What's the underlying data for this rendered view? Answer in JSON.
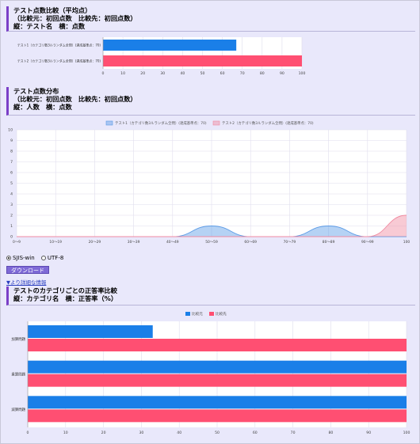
{
  "section1": {
    "title": "テスト点数比較（平均点）",
    "line2": "（比較元：初回点数　比較先：初回点数）",
    "line3": "縦：テスト名　横：点数",
    "chart_data": {
      "type": "bar",
      "orientation": "horizontal",
      "categories": [
        "テスト1（カテゴリ数3ルランダム全問）(達成基準点：70)",
        "テスト2（カテゴリ数3ルランダム全問）(達成基準点：70)"
      ],
      "values": [
        67,
        100
      ],
      "bar_colors": [
        "#1a7fe8",
        "#ff4f72"
      ],
      "xlim": [
        0,
        100
      ],
      "xticks": [
        0,
        10,
        20,
        30,
        40,
        50,
        60,
        70,
        80,
        90,
        100
      ]
    }
  },
  "section2": {
    "title": "テスト点数分布",
    "line2": "（比較元：初回点数　比較先：初回点数）",
    "line3": "縦：人数　横：点数",
    "chart_data": {
      "type": "area",
      "categories": [
        "0〜9",
        "10〜19",
        "20〜29",
        "30〜39",
        "40〜49",
        "50〜59",
        "60〜69",
        "70〜79",
        "80〜89",
        "90〜99",
        "100"
      ],
      "ylim": [
        0,
        10
      ],
      "yticks": [
        0,
        1,
        2,
        3,
        4,
        5,
        6,
        7,
        8,
        9,
        10
      ],
      "series": [
        {
          "name": "テスト1（カテゴリ数3ルランダム全問）(達成基準点：70)",
          "values": [
            0,
            0,
            0,
            0,
            0,
            1,
            0,
            0,
            1,
            0,
            0
          ],
          "color": "#5b9be6",
          "fill": "rgba(91,155,230,0.45)"
        },
        {
          "name": "テスト2（カテゴリ数3ルランダム全問）(達成基準点：70)",
          "values": [
            0,
            0,
            0,
            0,
            0,
            0,
            0,
            0,
            0,
            0,
            2
          ],
          "color": "#f08aa0",
          "fill": "rgba(240,138,160,0.45)"
        }
      ],
      "legend": "top",
      "grid": true
    }
  },
  "encoding": {
    "options": [
      "SJIS-win",
      "UTF-8"
    ],
    "selected": "SJIS-win"
  },
  "download_label": "ダウンロード",
  "detail_link": "▼より詳細な情報",
  "section3": {
    "title": "テストのカテゴリごとの正答率比較",
    "line2": "縦：カテゴリ名　横：正答率（%）",
    "chart_data": {
      "type": "bar",
      "orientation": "horizontal",
      "categories": [
        "加算問題",
        "乗算問題",
        "減算問題"
      ],
      "xlim": [
        0,
        100
      ],
      "xticks": [
        0,
        10,
        20,
        30,
        40,
        50,
        60,
        70,
        80,
        90,
        100
      ],
      "series": [
        {
          "name": "比較元",
          "values": [
            33,
            100,
            100
          ],
          "color": "#1a7fe8"
        },
        {
          "name": "比較先",
          "values": [
            100,
            100,
            100
          ],
          "color": "#ff4f72"
        }
      ],
      "legend": "top"
    }
  }
}
